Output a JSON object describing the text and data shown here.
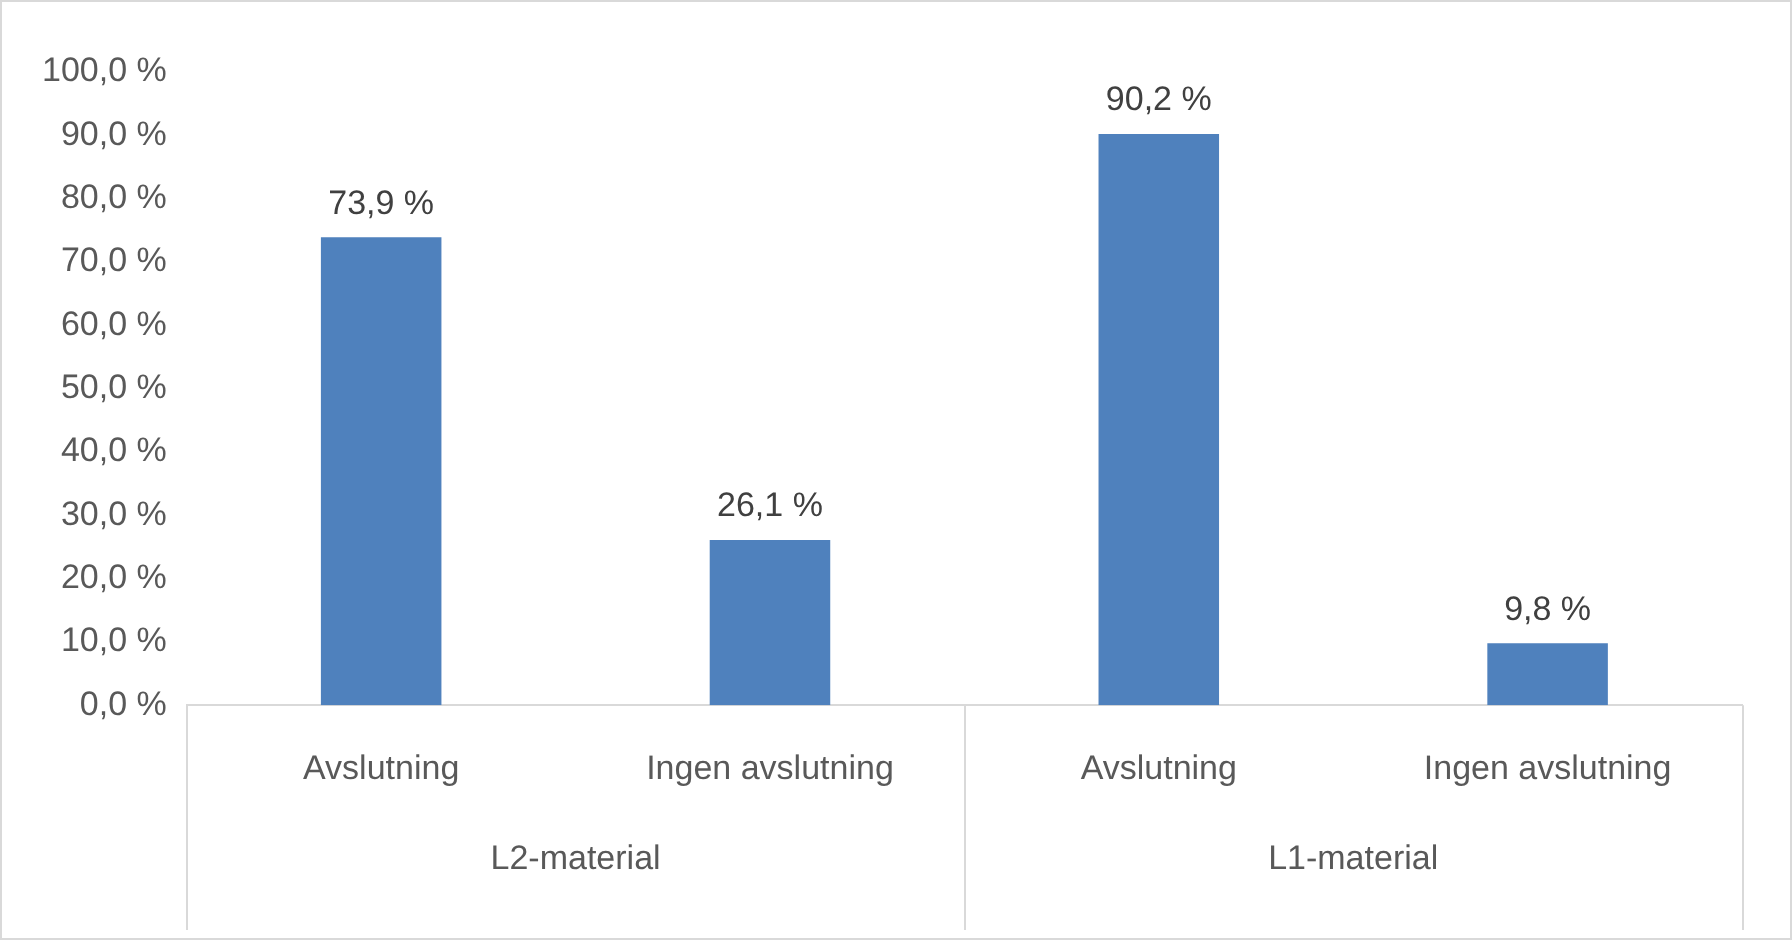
{
  "chart_data": {
    "type": "bar",
    "categories": [
      "Avslutning",
      "Ingen avslutning",
      "Avslutning",
      "Ingen avslutning"
    ],
    "values": [
      73.9,
      26.1,
      90.2,
      9.8
    ],
    "color": "#4f81bd",
    "value_labels": [
      "73,9 %",
      "26,1 %",
      "90,2 %",
      "9,8 %"
    ],
    "ylim": [
      0,
      100
    ],
    "yticks": [
      {
        "value": 0,
        "label": "0,0 %"
      },
      {
        "value": 10,
        "label": "10,0 %"
      },
      {
        "value": 20,
        "label": "20,0 %"
      },
      {
        "value": 30,
        "label": "30,0 %"
      },
      {
        "value": 40,
        "label": "40,0 %"
      },
      {
        "value": 50,
        "label": "50,0 %"
      },
      {
        "value": 60,
        "label": "60,0 %"
      },
      {
        "value": 70,
        "label": "70,0 %"
      },
      {
        "value": 80,
        "label": "80,0 %"
      },
      {
        "value": 90,
        "label": "90,0 %"
      },
      {
        "value": 100,
        "label": "100,0 %"
      }
    ],
    "annotations": [
      "L2-material",
      "L1-material"
    ],
    "grid": false,
    "legend": false
  }
}
